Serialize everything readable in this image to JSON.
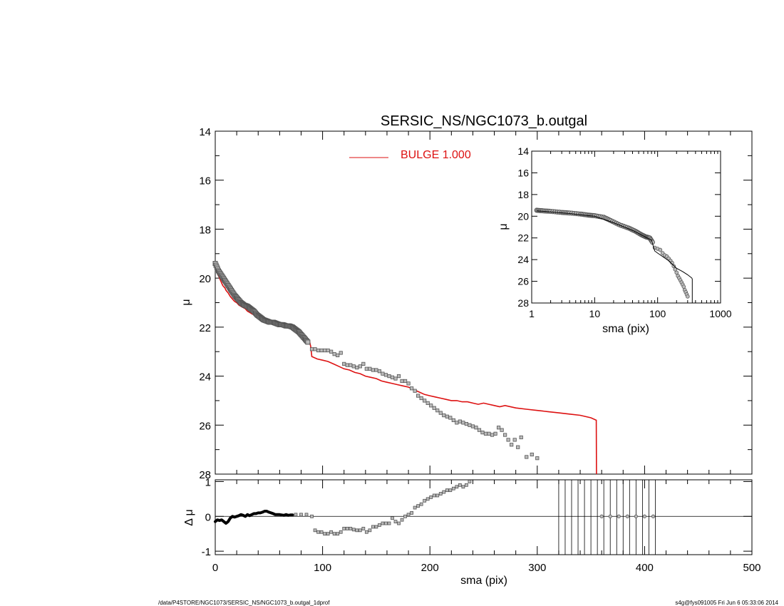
{
  "title": "SERSIC_NS/NGC1073_b.outgal",
  "footer": {
    "left": "/data/P4STORE/NGC1073/SERSIC_NS/NGC1073_b.outgal_1dprof",
    "right": "s4g@fys091005  Fri Jun  6 05:33:06 2014"
  },
  "colors": {
    "model": "#dd1111",
    "data_edge": "#555555",
    "data_fill": "#bbbbbb",
    "axis": "#000000"
  },
  "chart_data": [
    {
      "id": "main",
      "type": "scatter",
      "xlabel": "",
      "ylabel": "μ",
      "xlim": [
        0,
        500
      ],
      "ylim": [
        28,
        14
      ],
      "y_inverted": true,
      "yticks": [
        14,
        16,
        18,
        20,
        22,
        24,
        26,
        28
      ],
      "legend": {
        "position": "top-center",
        "entries": [
          {
            "label": "BULGE  1.000",
            "color": "#dd1111"
          }
        ]
      },
      "series": [
        {
          "name": "BULGE  1.000",
          "kind": "line",
          "x": [
            0,
            1,
            2,
            3,
            4,
            5,
            6,
            7,
            8,
            9,
            10,
            12,
            14,
            16,
            18,
            20,
            22,
            24,
            26,
            28,
            30,
            32,
            34,
            36,
            38,
            40,
            42,
            45,
            48,
            51,
            54,
            57,
            60,
            63,
            66,
            69,
            72,
            75,
            78,
            81,
            84,
            87,
            88,
            89,
            90,
            95,
            100,
            105,
            110,
            115,
            120,
            125,
            130,
            135,
            140,
            145,
            150,
            155,
            160,
            165,
            170,
            175,
            180,
            185,
            190,
            195,
            200,
            205,
            210,
            215,
            220,
            225,
            230,
            235,
            240,
            245,
            250,
            255,
            260,
            265,
            270,
            280,
            290,
            300,
            310,
            320,
            330,
            340,
            350,
            355,
            355.2
          ],
          "y": [
            19.5,
            19.7,
            19.8,
            19.9,
            20.0,
            20.1,
            20.2,
            20.3,
            20.35,
            20.4,
            20.5,
            20.6,
            20.75,
            20.85,
            20.95,
            21.0,
            21.1,
            21.15,
            21.2,
            21.25,
            21.35,
            21.4,
            21.45,
            21.5,
            21.55,
            21.6,
            21.65,
            21.7,
            21.72,
            21.75,
            21.8,
            21.85,
            21.85,
            21.9,
            21.95,
            22.0,
            22.05,
            22.1,
            22.2,
            22.3,
            22.45,
            22.55,
            22.6,
            22.8,
            23.2,
            23.3,
            23.35,
            23.4,
            23.5,
            23.6,
            23.7,
            23.75,
            23.85,
            23.9,
            24.0,
            24.05,
            24.1,
            24.2,
            24.25,
            24.3,
            24.35,
            24.4,
            24.45,
            24.55,
            24.65,
            24.75,
            24.8,
            24.85,
            24.9,
            24.95,
            25.0,
            25.0,
            25.05,
            25.05,
            25.1,
            25.15,
            25.1,
            25.15,
            25.2,
            25.25,
            25.2,
            25.3,
            25.35,
            25.4,
            25.45,
            25.5,
            25.55,
            25.6,
            25.7,
            25.8,
            28.0
          ]
        },
        {
          "name": "",
          "kind": "points",
          "x": [
            90,
            93,
            96,
            99,
            102,
            105,
            108,
            111,
            114,
            117,
            120,
            123,
            126,
            129,
            132,
            135,
            138,
            141,
            144,
            147,
            150,
            153,
            156,
            159,
            162,
            165,
            168,
            171,
            174,
            177,
            180,
            183,
            186,
            189,
            192,
            195,
            198,
            201,
            204,
            207,
            210,
            213,
            216,
            219,
            222,
            225,
            228,
            231,
            234,
            237,
            240,
            243,
            246,
            249,
            252,
            255,
            258,
            261,
            264,
            267,
            270,
            273,
            276,
            279,
            282,
            285,
            290,
            295,
            300
          ],
          "y": [
            22.9,
            22.9,
            22.95,
            22.95,
            22.95,
            22.95,
            23.0,
            23.1,
            23.15,
            23.05,
            23.5,
            23.55,
            23.55,
            23.6,
            23.65,
            23.6,
            23.5,
            23.7,
            23.7,
            23.75,
            23.75,
            23.8,
            23.9,
            23.95,
            24.0,
            24.05,
            24.1,
            24.0,
            24.2,
            24.2,
            24.3,
            24.5,
            24.6,
            24.8,
            24.9,
            25.0,
            25.1,
            25.2,
            25.3,
            25.4,
            25.5,
            25.6,
            25.65,
            25.7,
            25.8,
            25.9,
            25.85,
            25.9,
            25.95,
            26.0,
            26.05,
            26.1,
            26.2,
            26.3,
            26.35,
            26.35,
            26.4,
            26.35,
            26.1,
            26.2,
            26.4,
            26.6,
            26.8,
            26.6,
            26.9,
            26.5,
            27.3,
            27.2,
            27.35
          ]
        }
      ],
      "dense_band": {
        "x": [
          0,
          3,
          6,
          9,
          12,
          15,
          18,
          21,
          24,
          27,
          30,
          33,
          36,
          39,
          42,
          45,
          48,
          51,
          54,
          57,
          60,
          63,
          66,
          69,
          72,
          75,
          78,
          81,
          84,
          87
        ],
        "y": [
          19.4,
          19.7,
          19.9,
          20.1,
          20.3,
          20.5,
          20.7,
          20.85,
          21.0,
          21.1,
          21.15,
          21.25,
          21.35,
          21.5,
          21.6,
          21.7,
          21.75,
          21.8,
          21.8,
          21.85,
          21.9,
          21.9,
          21.95,
          21.95,
          22.0,
          22.1,
          22.2,
          22.35,
          22.5,
          22.65
        ]
      }
    },
    {
      "id": "residual",
      "type": "scatter",
      "xlabel": "sma (pix)",
      "ylabel": "Δ μ",
      "xlim": [
        0,
        500
      ],
      "ylim": [
        -1.1,
        1.05
      ],
      "xticks": [
        0,
        100,
        200,
        300,
        400,
        500
      ],
      "yticks": [
        -1,
        0,
        1
      ],
      "zero_line": true,
      "band": {
        "x": [
          0,
          2,
          4,
          6,
          8,
          10,
          12,
          14,
          16,
          18,
          20,
          22,
          24,
          26,
          28,
          30,
          32,
          34,
          36,
          38,
          40,
          42,
          44,
          46,
          48,
          50,
          52,
          54,
          56,
          58,
          60,
          62,
          64,
          66,
          68,
          70,
          72
        ],
        "y": [
          -0.15,
          -0.1,
          -0.12,
          -0.1,
          -0.15,
          -0.2,
          -0.15,
          -0.05,
          0.0,
          -0.02,
          0.0,
          0.02,
          0.05,
          0.03,
          0.0,
          0.05,
          0.02,
          0.05,
          0.08,
          0.08,
          0.1,
          0.1,
          0.12,
          0.15,
          0.15,
          0.12,
          0.1,
          0.08,
          0.05,
          0.05,
          0.05,
          0.04,
          0.03,
          0.05,
          0.03,
          0.04,
          0.04
        ]
      },
      "points": {
        "x": [
          75,
          80,
          85,
          90,
          93,
          96,
          99,
          102,
          105,
          108,
          111,
          114,
          117,
          120,
          123,
          126,
          129,
          132,
          135,
          138,
          141,
          144,
          147,
          150,
          153,
          156,
          159,
          162,
          165,
          168,
          171,
          174,
          177,
          180,
          183,
          186,
          189,
          192,
          195,
          198,
          201,
          204,
          207,
          210,
          213,
          216,
          219,
          222,
          225,
          228,
          231,
          234,
          237
        ],
        "y": [
          0.05,
          0.05,
          0.05,
          0.0,
          -0.4,
          -0.45,
          -0.45,
          -0.5,
          -0.5,
          -0.45,
          -0.5,
          -0.5,
          -0.45,
          -0.35,
          -0.35,
          -0.35,
          -0.38,
          -0.4,
          -0.4,
          -0.35,
          -0.45,
          -0.4,
          -0.3,
          -0.3,
          -0.25,
          -0.2,
          -0.2,
          -0.2,
          -0.05,
          -0.15,
          -0.2,
          -0.1,
          0.0,
          0.05,
          0.1,
          0.25,
          0.3,
          0.35,
          0.45,
          0.5,
          0.55,
          0.6,
          0.6,
          0.65,
          0.7,
          0.75,
          0.75,
          0.8,
          0.85,
          0.9,
          0.85,
          0.9,
          1.0
        ]
      },
      "zero_markers": {
        "x": [
          360,
          368,
          376,
          384,
          392,
          400,
          408
        ],
        "y": [
          0,
          0,
          0,
          0,
          0,
          0,
          0
        ]
      },
      "vertical_lines_x": [
        320,
        326,
        332,
        338,
        344,
        350,
        356,
        362,
        368,
        374,
        380,
        386,
        392,
        398,
        404,
        410
      ]
    },
    {
      "id": "inset",
      "type": "scatter",
      "xlabel": "sma (pix)",
      "ylabel": "μ",
      "x_log": true,
      "xlim": [
        1,
        1000
      ],
      "ylim": [
        28,
        14
      ],
      "y_inverted": true,
      "xticks": [
        1,
        10,
        100,
        1000
      ],
      "yticks": [
        14,
        16,
        18,
        20,
        22,
        24,
        26,
        28
      ],
      "band": {
        "x": [
          1.2,
          1.5,
          2,
          3,
          4,
          6,
          8,
          10,
          14,
          18,
          25,
          35,
          45,
          55,
          65,
          75,
          85
        ],
        "y": [
          19.45,
          19.5,
          19.55,
          19.65,
          19.7,
          19.8,
          19.9,
          19.95,
          20.1,
          20.4,
          20.8,
          21.1,
          21.4,
          21.7,
          21.9,
          22.0,
          22.5
        ]
      },
      "points": {
        "x": [
          90,
          100,
          110,
          120,
          130,
          140,
          150,
          160,
          170,
          180,
          190,
          200,
          210,
          220,
          230,
          240,
          250,
          260,
          270,
          280,
          290,
          300
        ],
        "y": [
          22.9,
          23.0,
          23.1,
          23.4,
          23.6,
          23.7,
          23.9,
          24.1,
          24.3,
          24.6,
          24.9,
          25.2,
          25.5,
          25.7,
          25.9,
          26.1,
          26.3,
          26.5,
          26.8,
          27.0,
          27.2,
          27.4
        ]
      },
      "line": {
        "x": [
          1.2,
          2,
          4,
          8,
          10,
          20,
          40,
          80,
          90,
          100,
          150,
          200,
          250,
          300,
          350,
          355,
          355.5
        ],
        "y": [
          19.5,
          19.6,
          19.75,
          19.95,
          20.0,
          20.6,
          21.3,
          22.2,
          23.2,
          23.4,
          24.1,
          24.8,
          25.1,
          25.4,
          25.7,
          25.8,
          28.0
        ]
      }
    }
  ]
}
